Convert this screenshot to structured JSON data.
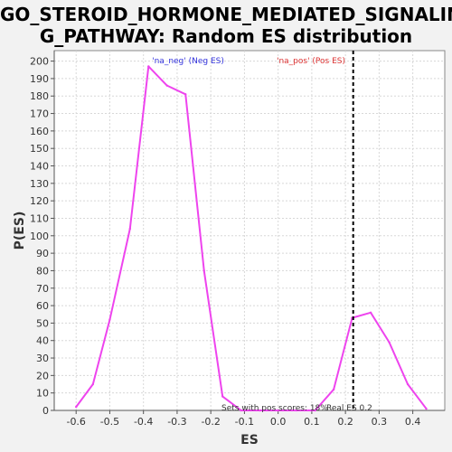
{
  "title_lines": [
    "GO_STEROID_HORMONE_MEDIATED_SIGNALIN",
    "G_PATHWAY: Random ES distribution"
  ],
  "chart_data": {
    "type": "line",
    "title": "GO_STEROID_HORMONE_MEDIATED_SIGNALING_PATHWAY: Random ES distribution",
    "xlabel": "ES",
    "ylabel": "P(ES)",
    "xlim": [
      -0.665,
      0.495
    ],
    "ylim": [
      0,
      206
    ],
    "x_ticks": [
      -0.6,
      -0.5,
      -0.4,
      -0.3,
      -0.2,
      -0.1,
      0.0,
      0.1,
      0.2,
      0.3,
      0.4
    ],
    "x_tick_labels": [
      "-0.6",
      "-0.5",
      "-0.4",
      "-0.3",
      "-0.2",
      "-0.1",
      "0.0",
      "0.1",
      "0.2",
      "0.3",
      "0.4"
    ],
    "y_ticks": [
      0,
      10,
      20,
      30,
      40,
      50,
      60,
      70,
      80,
      90,
      100,
      110,
      120,
      130,
      140,
      150,
      160,
      170,
      180,
      190,
      200
    ],
    "grid": true,
    "line_color": "#ee44ee",
    "series": [
      {
        "x": [
          -0.6,
          -0.55,
          -0.5,
          -0.44,
          -0.385,
          -0.33,
          -0.275,
          -0.22,
          -0.165,
          -0.11,
          -0.055,
          0.0,
          0.055,
          0.11,
          0.165,
          0.22,
          0.275,
          0.33,
          0.385,
          0.44
        ],
        "values": [
          2,
          15,
          52,
          104,
          197,
          186,
          181,
          80,
          8,
          0,
          0,
          0,
          0,
          0,
          12,
          53,
          56,
          39,
          15,
          1
        ]
      }
    ],
    "real_es": {
      "x": 0.223,
      "color": "#000000"
    },
    "annotations": {
      "neg_label": "'na_neg' (Neg ES)",
      "neg_color": "#3333dd",
      "pos_label": "'na_pos' (Pos ES)",
      "pos_color": "#dd3333",
      "sets_pos_label": "Sets with pos scores: 18%",
      "real_es_label": "Real ES 0.2"
    }
  }
}
